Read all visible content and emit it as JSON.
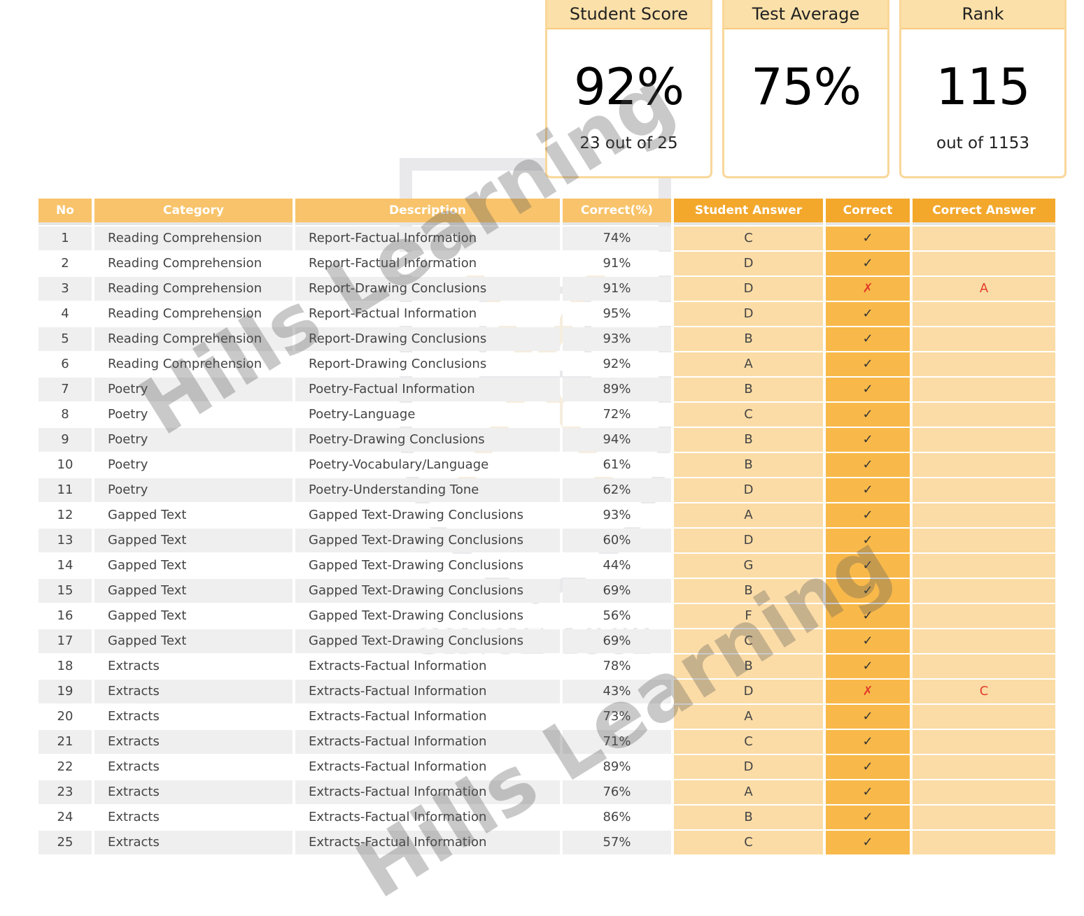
{
  "cards": [
    {
      "title": "Student Score",
      "value": "92%",
      "sub": "23 out of 25"
    },
    {
      "title": "Test Average",
      "value": "75%",
      "sub": ""
    },
    {
      "title": "Rank",
      "value": "115",
      "sub": "out of 1153"
    }
  ],
  "table": {
    "headers": {
      "no": "No",
      "category": "Category",
      "description": "Description",
      "correct_pct": "Correct(%)",
      "student_answer": "Student Answer",
      "correct": "Correct",
      "correct_answer": "Correct Answer"
    },
    "rows": [
      {
        "no": "1",
        "category": "Reading Comprehension",
        "description": "Report-Factual Information",
        "pct": "74%",
        "answer": "C",
        "mark": "✓",
        "correct_answer": ""
      },
      {
        "no": "2",
        "category": "Reading Comprehension",
        "description": "Report-Factual Information",
        "pct": "91%",
        "answer": "D",
        "mark": "✓",
        "correct_answer": ""
      },
      {
        "no": "3",
        "category": "Reading Comprehension",
        "description": "Report-Drawing Conclusions",
        "pct": "91%",
        "answer": "D",
        "mark": "✗",
        "correct_answer": "A"
      },
      {
        "no": "4",
        "category": "Reading Comprehension",
        "description": "Report-Factual Information",
        "pct": "95%",
        "answer": "D",
        "mark": "✓",
        "correct_answer": ""
      },
      {
        "no": "5",
        "category": "Reading Comprehension",
        "description": "Report-Drawing Conclusions",
        "pct": "93%",
        "answer": "B",
        "mark": "✓",
        "correct_answer": ""
      },
      {
        "no": "6",
        "category": "Reading Comprehension",
        "description": "Report-Drawing Conclusions",
        "pct": "92%",
        "answer": "A",
        "mark": "✓",
        "correct_answer": ""
      },
      {
        "no": "7",
        "category": "Poetry",
        "description": "Poetry-Factual Information",
        "pct": "89%",
        "answer": "B",
        "mark": "✓",
        "correct_answer": ""
      },
      {
        "no": "8",
        "category": "Poetry",
        "description": "Poetry-Language",
        "pct": "72%",
        "answer": "C",
        "mark": "✓",
        "correct_answer": ""
      },
      {
        "no": "9",
        "category": "Poetry",
        "description": "Poetry-Drawing Conclusions",
        "pct": "94%",
        "answer": "B",
        "mark": "✓",
        "correct_answer": ""
      },
      {
        "no": "10",
        "category": "Poetry",
        "description": "Poetry-Vocabulary/Language",
        "pct": "61%",
        "answer": "B",
        "mark": "✓",
        "correct_answer": ""
      },
      {
        "no": "11",
        "category": "Poetry",
        "description": "Poetry-Understanding Tone",
        "pct": "62%",
        "answer": "D",
        "mark": "✓",
        "correct_answer": ""
      },
      {
        "no": "12",
        "category": "Gapped Text",
        "description": "Gapped Text-Drawing Conclusions",
        "pct": "93%",
        "answer": "A",
        "mark": "✓",
        "correct_answer": ""
      },
      {
        "no": "13",
        "category": "Gapped Text",
        "description": "Gapped Text-Drawing Conclusions",
        "pct": "60%",
        "answer": "D",
        "mark": "✓",
        "correct_answer": ""
      },
      {
        "no": "14",
        "category": "Gapped Text",
        "description": "Gapped Text-Drawing Conclusions",
        "pct": "44%",
        "answer": "G",
        "mark": "✓",
        "correct_answer": ""
      },
      {
        "no": "15",
        "category": "Gapped Text",
        "description": "Gapped Text-Drawing Conclusions",
        "pct": "69%",
        "answer": "B",
        "mark": "✓",
        "correct_answer": ""
      },
      {
        "no": "16",
        "category": "Gapped Text",
        "description": "Gapped Text-Drawing Conclusions",
        "pct": "56%",
        "answer": "F",
        "mark": "✓",
        "correct_answer": ""
      },
      {
        "no": "17",
        "category": "Gapped Text",
        "description": "Gapped Text-Drawing Conclusions",
        "pct": "69%",
        "answer": "C",
        "mark": "✓",
        "correct_answer": ""
      },
      {
        "no": "18",
        "category": "Extracts",
        "description": "Extracts-Factual Information",
        "pct": "78%",
        "answer": "B",
        "mark": "✓",
        "correct_answer": ""
      },
      {
        "no": "19",
        "category": "Extracts",
        "description": "Extracts-Factual Information",
        "pct": "43%",
        "answer": "D",
        "mark": "✗",
        "correct_answer": "C"
      },
      {
        "no": "20",
        "category": "Extracts",
        "description": "Extracts-Factual Information",
        "pct": "73%",
        "answer": "A",
        "mark": "✓",
        "correct_answer": ""
      },
      {
        "no": "21",
        "category": "Extracts",
        "description": "Extracts-Factual Information",
        "pct": "71%",
        "answer": "C",
        "mark": "✓",
        "correct_answer": ""
      },
      {
        "no": "22",
        "category": "Extracts",
        "description": "Extracts-Factual Information",
        "pct": "89%",
        "answer": "D",
        "mark": "✓",
        "correct_answer": ""
      },
      {
        "no": "23",
        "category": "Extracts",
        "description": "Extracts-Factual Information",
        "pct": "76%",
        "answer": "A",
        "mark": "✓",
        "correct_answer": ""
      },
      {
        "no": "24",
        "category": "Extracts",
        "description": "Extracts-Factual Information",
        "pct": "86%",
        "answer": "B",
        "mark": "✓",
        "correct_answer": ""
      },
      {
        "no": "25",
        "category": "Extracts",
        "description": "Extracts-Factual Information",
        "pct": "57%",
        "answer": "C",
        "mark": "✓",
        "correct_answer": ""
      }
    ]
  },
  "watermark": {
    "text": "Hills Learning",
    "crest_text": "SINCE 1962"
  },
  "colors": {
    "header_light": "#f8c36a",
    "header_dark": "#f3a82c",
    "wrong_red": "#e23b2a",
    "card_border": "#f9d79a"
  }
}
